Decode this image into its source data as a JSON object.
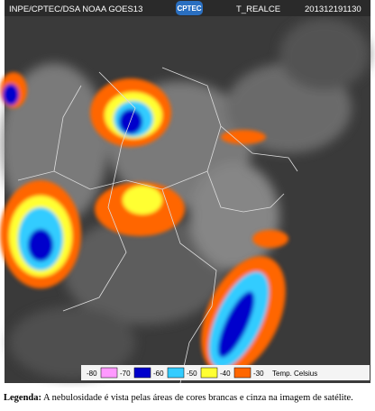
{
  "header": {
    "source": "INPE/CPTEC/DSA NOAA GOES13",
    "logo": "CPTEC",
    "product": "T_REALCE",
    "timestamp": "201312191130"
  },
  "legend": {
    "entries": [
      {
        "label": "-80",
        "color": "#ff99ff"
      },
      {
        "label": "-70",
        "color": "#0000cc"
      },
      {
        "label": "-60",
        "color": "#33ccff"
      },
      {
        "label": "-50",
        "color": "#ffff33"
      },
      {
        "label": "-40",
        "color": "#ff6600"
      },
      {
        "label": "-30",
        "color": "#ffffff"
      }
    ],
    "unit": "Temp. Celsius"
  },
  "caption": {
    "label": "Legenda:",
    "text": "A nebulosidade é vista pelas áreas de cores brancas e cinza na imagem de satélite."
  }
}
